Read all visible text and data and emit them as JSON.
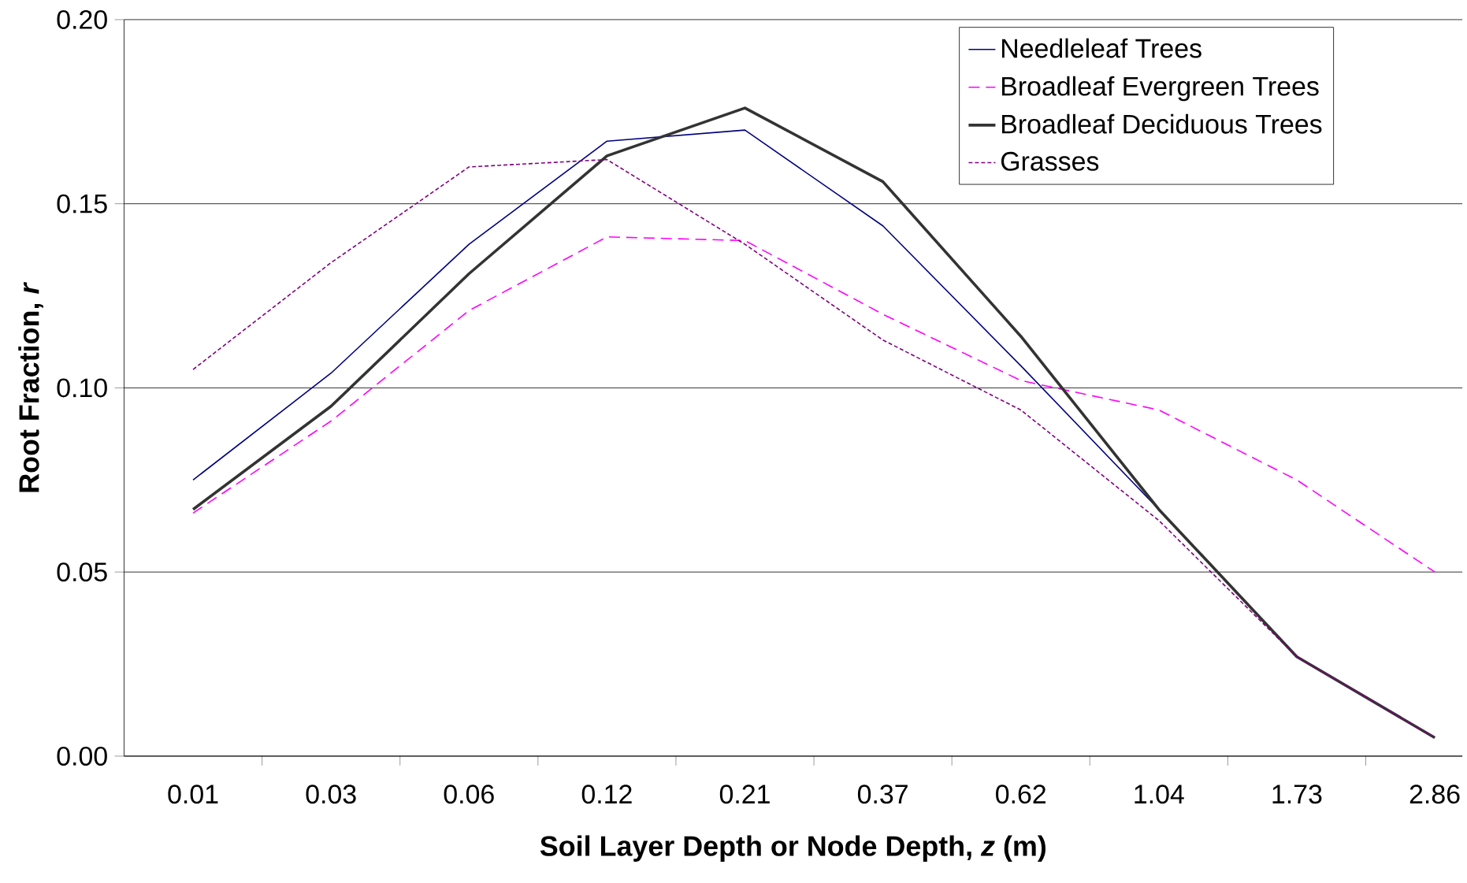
{
  "chart_data": {
    "type": "line",
    "xlabel": "Soil Layer Depth or Node Depth, *z* (m)",
    "ylabel": "Root Fraction, *r*",
    "categories": [
      "0.01",
      "0.03",
      "0.06",
      "0.12",
      "0.21",
      "0.37",
      "0.62",
      "1.04",
      "1.73",
      "2.86"
    ],
    "ylim": [
      0,
      0.2
    ],
    "yticks": [
      {
        "value": 0,
        "label": "0.00"
      },
      {
        "value": 0.05,
        "label": "0.05"
      },
      {
        "value": 0.1,
        "label": "0.10"
      },
      {
        "value": 0.15,
        "label": "0.15"
      },
      {
        "value": 0.2,
        "label": "0.20"
      }
    ],
    "grid": "y",
    "legend": "top right",
    "marker": "none",
    "series": [
      {
        "name": "Needleleaf Trees",
        "color": "#000080",
        "line_style": "solid",
        "values": [
          0.075,
          0.104,
          0.139,
          0.167,
          0.17,
          0.144,
          0.106,
          0.067,
          0.027,
          0.005
        ]
      },
      {
        "name": "Broadleaf Evergreen Trees",
        "color": "#ff00ff",
        "line_style": "dashed",
        "values": [
          0.066,
          0.091,
          0.121,
          0.141,
          0.14,
          0.12,
          0.102,
          0.094,
          0.075,
          0.05
        ]
      },
      {
        "name": "Broadleaf Deciduous Trees",
        "color": "#333333",
        "line_style": "solid",
        "values": [
          0.067,
          0.095,
          0.131,
          0.163,
          0.176,
          0.156,
          0.114,
          0.067,
          0.027,
          0.005
        ]
      },
      {
        "name": "Grasses",
        "color": "#800080",
        "line_style": "dotted",
        "values": [
          0.105,
          0.134,
          0.16,
          0.162,
          0.139,
          0.113,
          0.094,
          0.064,
          0.027,
          0.005
        ]
      }
    ]
  }
}
